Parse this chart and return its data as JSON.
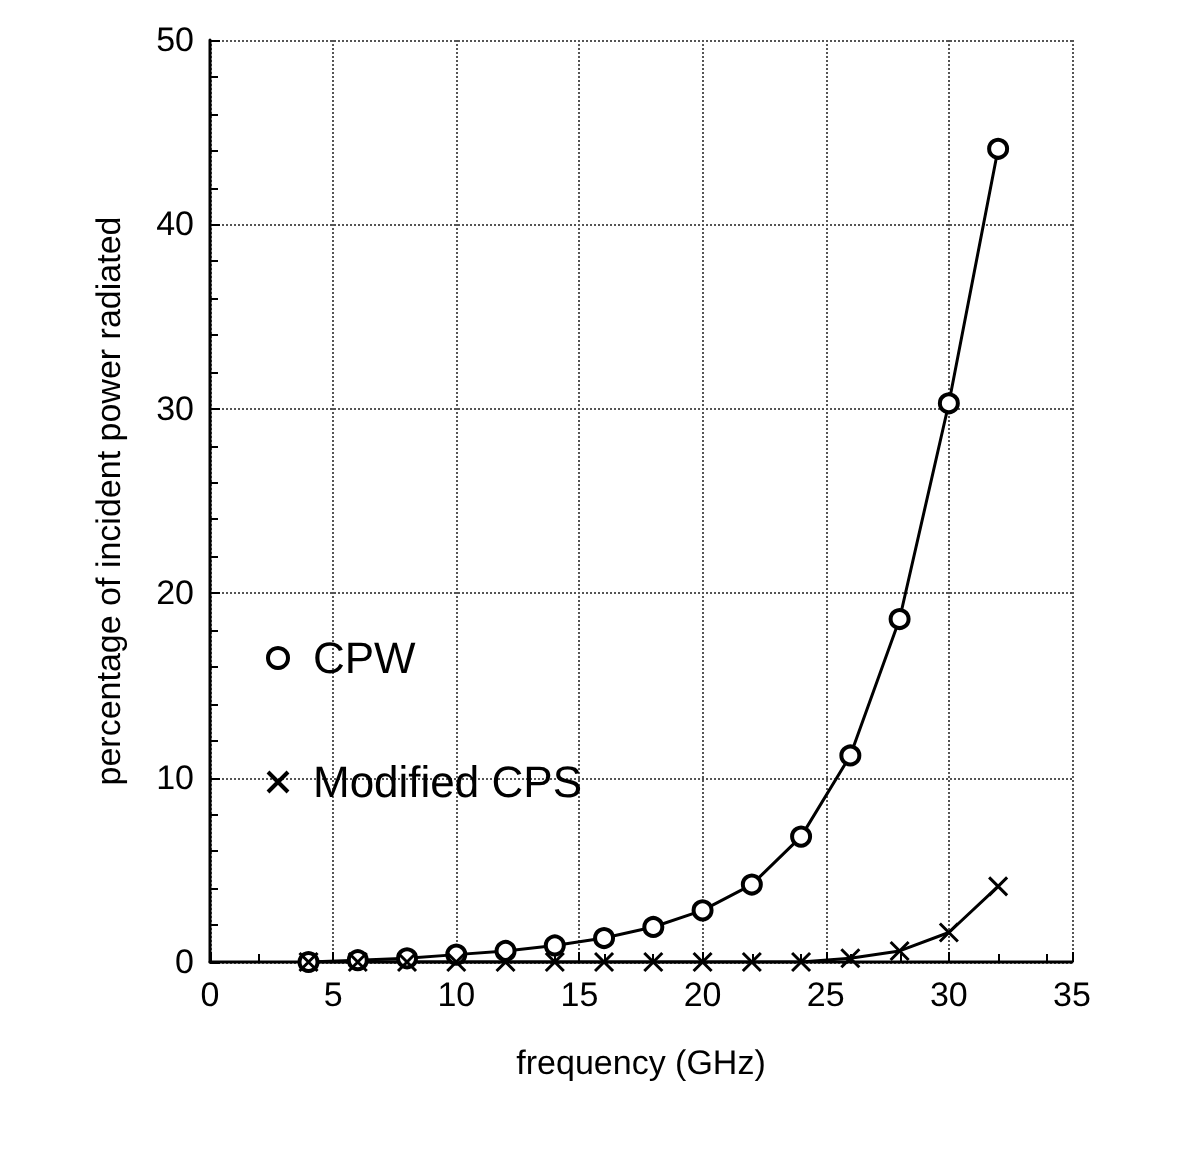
{
  "chart_data": {
    "type": "line",
    "xlabel": "frequency (GHz)",
    "ylabel": "percentage of incident power radiated",
    "x": [
      4,
      6,
      8,
      10,
      12,
      14,
      16,
      18,
      20,
      22,
      24,
      26,
      28,
      30,
      32
    ],
    "series": [
      {
        "name": "CPW",
        "color": "#000000",
        "marker": "circle",
        "values": [
          0,
          0.1,
          0.2,
          0.4,
          0.6,
          0.9,
          1.3,
          1.9,
          2.8,
          4.2,
          6.8,
          11.2,
          18.6,
          30.3,
          44.1
        ]
      },
      {
        "name": "Modified CPS",
        "color": "#000000",
        "marker": "cross",
        "values": [
          0,
          0,
          0,
          0,
          0,
          0,
          0,
          0,
          0,
          0,
          0,
          0.2,
          0.6,
          1.6,
          4.1
        ]
      }
    ],
    "xlim": [
      0,
      35
    ],
    "xticks": [
      0,
      5,
      10,
      15,
      20,
      25,
      30,
      35
    ],
    "ylim": [
      0,
      50
    ],
    "yticks": [
      0,
      10,
      20,
      30,
      40,
      50
    ],
    "grid": true,
    "legend": "left",
    "line_style": "solid"
  }
}
